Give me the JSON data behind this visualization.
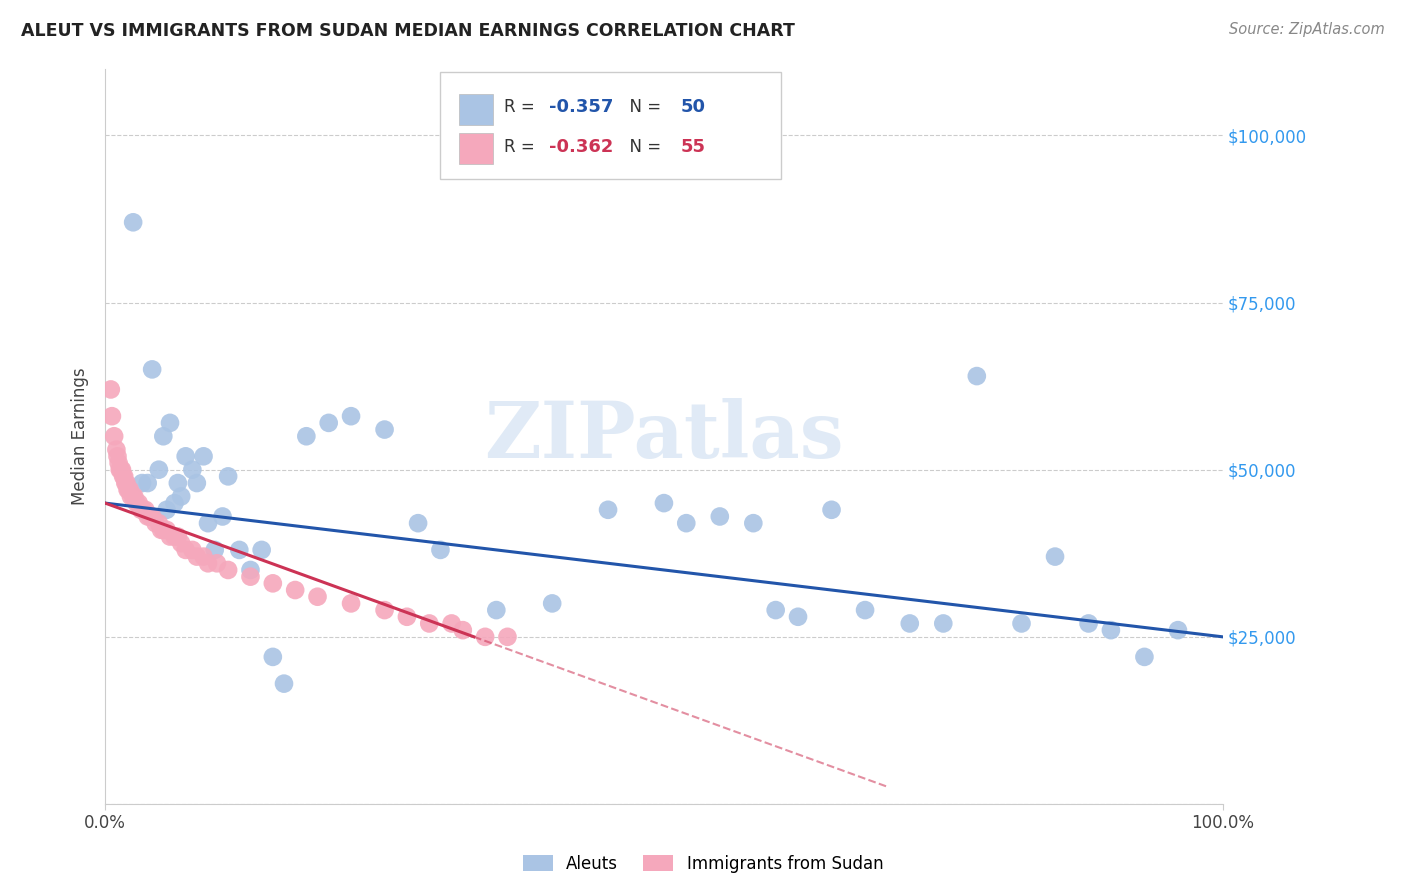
{
  "title": "ALEUT VS IMMIGRANTS FROM SUDAN MEDIAN EARNINGS CORRELATION CHART",
  "source": "Source: ZipAtlas.com",
  "ylabel": "Median Earnings",
  "blue_R": -0.357,
  "blue_N": 50,
  "pink_R": -0.362,
  "pink_N": 55,
  "blue_color": "#aac4e4",
  "pink_color": "#f5a8bc",
  "blue_line_color": "#2255aa",
  "pink_line_color": "#cc3355",
  "xmin": 0.0,
  "xmax": 1.0,
  "ymin": 0,
  "ymax": 110000,
  "blue_x": [
    0.025,
    0.033,
    0.038,
    0.042,
    0.048,
    0.052,
    0.055,
    0.058,
    0.062,
    0.065,
    0.068,
    0.072,
    0.078,
    0.082,
    0.088,
    0.092,
    0.098,
    0.105,
    0.11,
    0.12,
    0.13,
    0.14,
    0.15,
    0.16,
    0.18,
    0.2,
    0.22,
    0.25,
    0.28,
    0.3,
    0.35,
    0.4,
    0.45,
    0.5,
    0.52,
    0.55,
    0.58,
    0.6,
    0.62,
    0.65,
    0.68,
    0.72,
    0.75,
    0.78,
    0.82,
    0.85,
    0.88,
    0.9,
    0.93,
    0.96
  ],
  "blue_y": [
    87000,
    48000,
    48000,
    65000,
    50000,
    55000,
    44000,
    57000,
    45000,
    48000,
    46000,
    52000,
    50000,
    48000,
    52000,
    42000,
    38000,
    43000,
    49000,
    38000,
    35000,
    38000,
    22000,
    18000,
    55000,
    57000,
    58000,
    56000,
    42000,
    38000,
    29000,
    30000,
    44000,
    45000,
    42000,
    43000,
    42000,
    29000,
    28000,
    44000,
    29000,
    27000,
    27000,
    64000,
    27000,
    37000,
    27000,
    26000,
    22000,
    26000
  ],
  "pink_x": [
    0.005,
    0.006,
    0.008,
    0.01,
    0.011,
    0.012,
    0.013,
    0.014,
    0.015,
    0.016,
    0.017,
    0.018,
    0.019,
    0.02,
    0.021,
    0.022,
    0.023,
    0.025,
    0.026,
    0.028,
    0.03,
    0.032,
    0.034,
    0.036,
    0.038,
    0.04,
    0.042,
    0.045,
    0.048,
    0.05,
    0.052,
    0.055,
    0.058,
    0.062,
    0.065,
    0.068,
    0.072,
    0.078,
    0.082,
    0.088,
    0.092,
    0.1,
    0.11,
    0.13,
    0.15,
    0.17,
    0.19,
    0.22,
    0.25,
    0.27,
    0.29,
    0.31,
    0.32,
    0.34,
    0.36
  ],
  "pink_y": [
    62000,
    58000,
    55000,
    53000,
    52000,
    51000,
    50000,
    50000,
    50000,
    49000,
    49000,
    48000,
    48000,
    47000,
    47000,
    47000,
    46000,
    46000,
    46000,
    45000,
    45000,
    44000,
    44000,
    44000,
    43000,
    43000,
    43000,
    42000,
    42000,
    41000,
    41000,
    41000,
    40000,
    40000,
    40000,
    39000,
    38000,
    38000,
    37000,
    37000,
    36000,
    36000,
    35000,
    34000,
    33000,
    32000,
    31000,
    30000,
    29000,
    28000,
    27000,
    27000,
    26000,
    25000,
    25000
  ]
}
